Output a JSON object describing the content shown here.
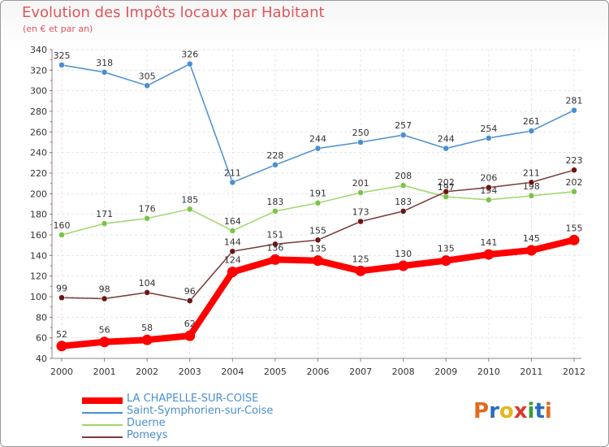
{
  "header": {
    "title": "Evolution des Impôts locaux par Habitant",
    "subtitle": "(en € et par an)"
  },
  "brand": {
    "letters": [
      "P",
      "r",
      "o",
      "x",
      "i",
      "t",
      "i"
    ],
    "colors": [
      "#e06b1e",
      "#2a6ebb",
      "#e8b51e",
      "#d93a2b",
      "#3a9a3a",
      "#2a6ebb",
      "#e06b1e"
    ]
  },
  "chart_data": {
    "type": "line",
    "title": "Evolution des Impôts locaux par Habitant",
    "subtitle": "(en € et par an)",
    "xlabel": "",
    "ylabel": "",
    "x": [
      "2000",
      "2001",
      "2002",
      "2003",
      "2004",
      "2005",
      "2006",
      "2007",
      "2008",
      "2009",
      "2010",
      "2011",
      "2012"
    ],
    "ylim": [
      40,
      340
    ],
    "yticks": [
      "40",
      "60",
      "80",
      "100",
      "120",
      "140",
      "160",
      "180",
      "200",
      "220",
      "240",
      "260",
      "280",
      "300",
      "320",
      "340"
    ],
    "grid": true,
    "legend_position": "bottom-left",
    "series": [
      {
        "name": "Saint-Symphorien-sur-Coise",
        "color": "#4a8fd0",
        "dot": "#4a8fd0",
        "bold": false,
        "values": [
          325,
          318,
          305,
          326,
          211,
          228,
          244,
          250,
          257,
          244,
          254,
          261,
          281
        ],
        "labels": [
          "325",
          "318",
          "305",
          "326",
          "211",
          "228",
          "244",
          "250",
          "257",
          "244",
          "254",
          "261",
          "281"
        ]
      },
      {
        "name": "Duerne",
        "color": "#9fd66a",
        "dot": "#7cc448",
        "bold": false,
        "values": [
          160,
          171,
          176,
          185,
          164,
          183,
          191,
          201,
          208,
          197,
          194,
          198,
          202
        ],
        "labels": [
          "160",
          "171",
          "176",
          "185",
          "164",
          "183",
          "191",
          "201",
          "208",
          "197",
          "194",
          "198",
          "202"
        ]
      },
      {
        "name": "Pomeys",
        "color": "#7a3a3a",
        "dot": "#6b1515",
        "bold": false,
        "values": [
          99,
          98,
          104,
          96,
          144,
          151,
          155,
          173,
          183,
          202,
          206,
          211,
          223
        ],
        "labels": [
          "99",
          "98",
          "104",
          "96",
          "144",
          "151",
          "155",
          "173",
          "183",
          "202",
          "206",
          "211",
          "223"
        ]
      },
      {
        "name": "LA CHAPELLE-SUR-COISE",
        "color": "#ff0000",
        "dot": "#ff0000",
        "bold": true,
        "values": [
          52,
          56,
          58,
          62,
          124,
          136,
          135,
          125,
          130,
          135,
          141,
          145,
          155
        ],
        "labels": [
          "52",
          "56",
          "58",
          "62",
          "124",
          "136",
          "135",
          "125",
          "130",
          "135",
          "141",
          "145",
          "155"
        ]
      }
    ],
    "legend": [
      {
        "name": "LA CHAPELLE-SUR-COISE",
        "color": "#ff0000",
        "text_color": "#4a8fd0",
        "bold": true
      },
      {
        "name": "Saint-Symphorien-sur-Coise",
        "color": "#4a8fd0",
        "text_color": "#4a8fd0",
        "bold": false
      },
      {
        "name": "Duerne",
        "color": "#9fd66a",
        "text_color": "#4a8fd0",
        "bold": false
      },
      {
        "name": "Pomeys",
        "color": "#7a3a3a",
        "text_color": "#4a8fd0",
        "bold": false
      }
    ]
  }
}
